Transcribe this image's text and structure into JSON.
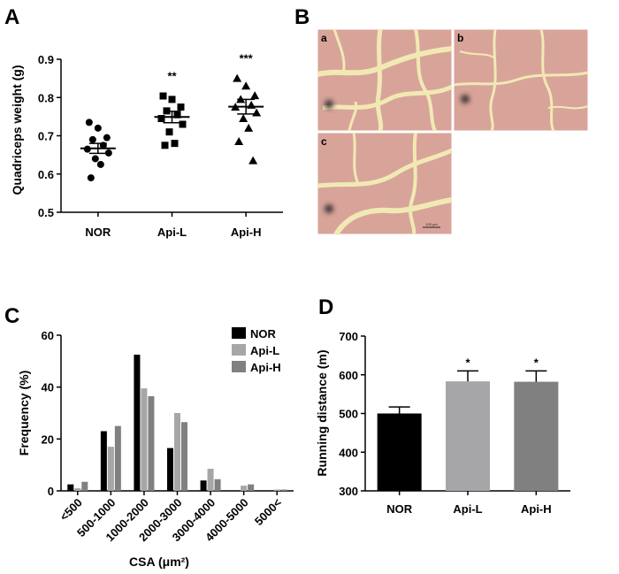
{
  "panels": {
    "A": "A",
    "B": "B",
    "C": "C",
    "D": "D"
  },
  "chart_data": [
    {
      "id": "A",
      "type": "scatter",
      "ylabel": "Quadriceps weight (g)",
      "xlabel": "",
      "categories": [
        "NOR",
        "Api-L",
        "Api-H"
      ],
      "ylim": [
        0.5,
        0.9
      ],
      "yticks": [
        0.5,
        0.6,
        0.7,
        0.8,
        0.9
      ],
      "series": [
        {
          "category": "NOR",
          "marker": "circle",
          "values": [
            0.735,
            0.72,
            0.695,
            0.69,
            0.675,
            0.665,
            0.655,
            0.64,
            0.625,
            0.59
          ],
          "mean": 0.667,
          "sem": 0.013,
          "significance": ""
        },
        {
          "category": "Api-L",
          "marker": "square",
          "values": [
            0.804,
            0.795,
            0.775,
            0.765,
            0.755,
            0.745,
            0.73,
            0.71,
            0.68,
            0.675
          ],
          "mean": 0.749,
          "sem": 0.015,
          "significance": "**"
        },
        {
          "category": "Api-H",
          "marker": "triangle",
          "values": [
            0.85,
            0.83,
            0.805,
            0.795,
            0.78,
            0.775,
            0.76,
            0.745,
            0.72,
            0.685,
            0.635
          ],
          "mean": 0.776,
          "sem": 0.019,
          "significance": "***"
        }
      ]
    },
    {
      "id": "C",
      "type": "bar",
      "xlabel": "CSA (μm²)",
      "ylabel": "Frequency (%)",
      "categories": [
        "<500",
        "500-1000",
        "1000-2000",
        "2000-3000",
        "3000-4000",
        "4000-5000",
        "5000<"
      ],
      "ylim": [
        0,
        60
      ],
      "yticks": [
        0,
        20,
        40,
        60
      ],
      "legend": "top-right",
      "series": [
        {
          "name": "NOR",
          "color": "#000000",
          "values": [
            2.5,
            23,
            52.5,
            16.5,
            4,
            0,
            0
          ]
        },
        {
          "name": "Api-L",
          "color": "#a6a6a8",
          "values": [
            1,
            17,
            39.5,
            30,
            8.5,
            2,
            0.5
          ]
        },
        {
          "name": "Api-H",
          "color": "#808080",
          "values": [
            3.5,
            25,
            36.5,
            26.5,
            4.5,
            2.5,
            0.5
          ]
        }
      ]
    },
    {
      "id": "D",
      "type": "bar",
      "xlabel": "",
      "ylabel": "Running distance (m)",
      "categories": [
        "NOR",
        "Api-L",
        "Api-H"
      ],
      "ylim": [
        300,
        700
      ],
      "yticks": [
        300,
        400,
        500,
        600,
        700
      ],
      "values": [
        500,
        583,
        582
      ],
      "errors": [
        17,
        27,
        28
      ],
      "colors": [
        "#000000",
        "#a6a6a8",
        "#808080"
      ],
      "significance": [
        "",
        "*",
        "*"
      ]
    }
  ],
  "micrographs": {
    "colors": {
      "tissue": "#d8a49a",
      "gap": "#f1e9b4",
      "border": "#ffffff"
    },
    "labels": [
      "a",
      "b",
      "c"
    ],
    "scale_bar": "100 μm"
  }
}
